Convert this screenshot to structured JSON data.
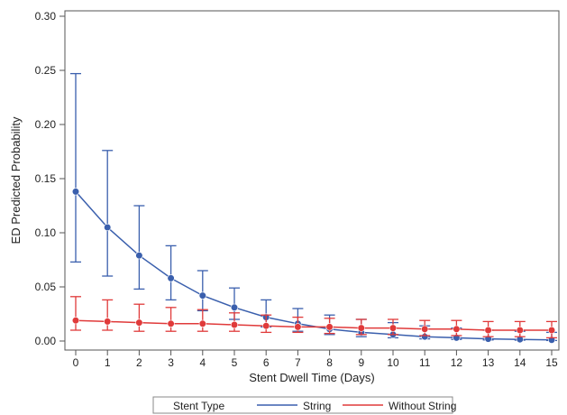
{
  "chart_data": {
    "type": "line",
    "xlabel": "Stent Dwell Time (Days)",
    "ylabel": "ED Predicted Probability",
    "xlim": [
      0,
      15
    ],
    "ylim": [
      0,
      0.3
    ],
    "x_ticks": [
      "0",
      "1",
      "2",
      "3",
      "4",
      "5",
      "6",
      "7",
      "8",
      "9",
      "10",
      "11",
      "12",
      "13",
      "14",
      "15"
    ],
    "y_ticks": [
      "0.00",
      "0.05",
      "0.10",
      "0.15",
      "0.20",
      "0.25",
      "0.30"
    ],
    "grid": false,
    "legend": {
      "position": "bottom",
      "title": "Stent Type"
    },
    "series": [
      {
        "name": "String",
        "color": "#3a5fad",
        "x": [
          0,
          1,
          2,
          3,
          4,
          5,
          6,
          7,
          8,
          9,
          10,
          11,
          12,
          13,
          14,
          15
        ],
        "y": [
          0.138,
          0.105,
          0.079,
          0.058,
          0.042,
          0.031,
          0.022,
          0.016,
          0.011,
          0.008,
          0.006,
          0.004,
          0.003,
          0.002,
          0.0015,
          0.001
        ],
        "lower": [
          0.073,
          0.06,
          0.048,
          0.038,
          0.028,
          0.02,
          0.013,
          0.009,
          0.006,
          0.004,
          0.003,
          0.002,
          0.0015,
          0.001,
          0.0008,
          0.0005
        ],
        "upper": [
          0.247,
          0.176,
          0.125,
          0.088,
          0.065,
          0.049,
          0.038,
          0.03,
          0.024,
          0.02,
          0.017,
          0.014,
          0.012,
          0.01,
          0.009,
          0.008
        ]
      },
      {
        "name": "Without String",
        "color": "#e03a3a",
        "x": [
          0,
          1,
          2,
          3,
          4,
          5,
          6,
          7,
          8,
          9,
          10,
          11,
          12,
          13,
          14,
          15
        ],
        "y": [
          0.019,
          0.018,
          0.017,
          0.016,
          0.016,
          0.015,
          0.014,
          0.013,
          0.013,
          0.012,
          0.012,
          0.011,
          0.011,
          0.01,
          0.01,
          0.01
        ],
        "lower": [
          0.01,
          0.01,
          0.009,
          0.009,
          0.009,
          0.009,
          0.008,
          0.008,
          0.007,
          0.006,
          0.006,
          0.005,
          0.005,
          0.004,
          0.004,
          0.003
        ],
        "upper": [
          0.041,
          0.038,
          0.034,
          0.031,
          0.029,
          0.026,
          0.024,
          0.022,
          0.021,
          0.02,
          0.02,
          0.019,
          0.019,
          0.018,
          0.018,
          0.018
        ]
      }
    ]
  }
}
